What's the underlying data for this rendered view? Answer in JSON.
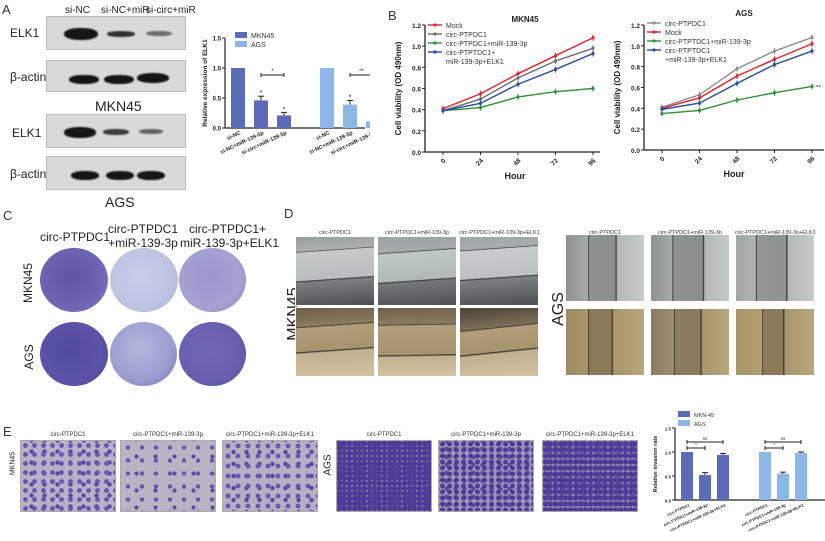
{
  "panels": {
    "A": {
      "letter": "A",
      "lanes": [
        "si-NC",
        "si-NC+miR",
        "si-circ+miR"
      ],
      "blot_rows": [
        "ELK1",
        "β-actin",
        "ELK1",
        "β-actin"
      ],
      "cell_lines": [
        "MKN45",
        "AGS"
      ]
    },
    "B": {
      "letter": "B"
    },
    "C": {
      "letter": "C",
      "columns": [
        "circ-PTPDC1",
        "circ-PTPDC1\n+miR-139-3p",
        "circ-PTPDC1+\nmiR-139-3p+ELK1"
      ],
      "col1": "circ-PTPDC1",
      "col2a": "circ-PTPDC1",
      "col2b": "+miR-139-3p",
      "col3a": "circ-PTPDC1+",
      "col3b": "miR-139-3p+ELK1",
      "rows": [
        "MKN45",
        "AGS"
      ]
    },
    "D": {
      "letter": "D",
      "columns": [
        "circ-PTPDC1",
        "circ-PTPDC1+miR-139-3p",
        "circ-PTPDC1+miR-139-3p+ELK1"
      ],
      "rows": [
        "MKN45",
        "AGS"
      ]
    },
    "E": {
      "letter": "E",
      "columns": [
        "circ-PTPDC1",
        "circ-PTPDC1+miR-139-3p",
        "circ-PTPDC1+miR-139-3p+ELK1"
      ],
      "rows": [
        "MKN45",
        "AGS"
      ]
    }
  },
  "chart_data": [
    {
      "id": "A-bar",
      "type": "bar",
      "title": "",
      "ylabel": "Relative expression of ELK1",
      "xlabel": "",
      "ylim": [
        0,
        1.5
      ],
      "yticks": [
        "0.0",
        "0.5",
        "1.0",
        "1.5"
      ],
      "categories": [
        "si-NC",
        "si-NC+miR-139-3p",
        "si-circ+miR-139-3p"
      ],
      "series": [
        {
          "name": "MKN45",
          "color": "#5b6bb8",
          "values": [
            1.0,
            0.46,
            0.21
          ],
          "errors": [
            0,
            0.07,
            0.05
          ],
          "stars": [
            "",
            "*",
            "*"
          ]
        },
        {
          "name": "AGS",
          "color": "#8cb6e6",
          "values": [
            1.0,
            0.39,
            0.11
          ],
          "errors": [
            0,
            0.07,
            0.03
          ],
          "stars": [
            "",
            "*",
            "**"
          ]
        }
      ],
      "annotations": [
        {
          "series": "MKN45",
          "between": [
            1,
            2
          ],
          "text": "*"
        },
        {
          "series": "AGS",
          "between": [
            1,
            2
          ],
          "text": "**"
        }
      ],
      "legend_position": "top"
    },
    {
      "id": "B-MKN45",
      "type": "line",
      "title": "MKN45",
      "xlabel": "Hour",
      "ylabel": "Cell viability (OD 490nm)",
      "x": [
        "0",
        "24",
        "48",
        "72",
        "96"
      ],
      "ylim": [
        0,
        1.2
      ],
      "yticks": [
        "0.0",
        "0.2",
        "0.4",
        "0.6",
        "0.8",
        "1.0",
        "1.2"
      ],
      "series": [
        {
          "name": "Mock",
          "color": "#e0242b",
          "values": [
            0.41,
            0.55,
            0.74,
            0.91,
            1.08
          ]
        },
        {
          "name": "circ-PTPDC1",
          "color": "#6d6d6d",
          "values": [
            0.39,
            0.5,
            0.7,
            0.86,
            0.98
          ]
        },
        {
          "name": "circ-PTPDC1+miR-139-3p",
          "color": "#2f8f3a",
          "values": [
            0.39,
            0.42,
            0.52,
            0.57,
            0.6
          ]
        },
        {
          "name": "circ-PTPTDC1+\nmiR-139-3p+ELK1",
          "color": "#2a4da0",
          "values": [
            0.39,
            0.46,
            0.64,
            0.78,
            0.93
          ]
        }
      ],
      "legend": [
        "Mock",
        "circ-PTPDC1",
        "circ-PTPDC1+miR-139-3p",
        "circ-PTPTDC1+",
        "miR-139-3p+ELK1"
      ],
      "legend_position": "top-left"
    },
    {
      "id": "B-AGS",
      "type": "line",
      "title": "AGS",
      "xlabel": "Hour",
      "ylabel": "Cell viability (OD 490nm)",
      "x": [
        "0",
        "24",
        "48",
        "72",
        "96"
      ],
      "ylim": [
        0,
        1.2
      ],
      "yticks": [
        "0.0",
        "0.2",
        "0.4",
        "0.6",
        "0.8",
        "1.0",
        "1.2"
      ],
      "series": [
        {
          "name": "circ-PTPDC1",
          "color": "#8c8c8c",
          "values": [
            0.41,
            0.53,
            0.78,
            0.95,
            1.08
          ]
        },
        {
          "name": "Mock",
          "color": "#e0242b",
          "values": [
            0.4,
            0.5,
            0.71,
            0.87,
            1.02
          ]
        },
        {
          "name": "circ-PTPTDC1+miR-139-3p",
          "color": "#2f8f3a",
          "values": [
            0.35,
            0.38,
            0.48,
            0.55,
            0.61
          ]
        },
        {
          "name": "circ-PTPTDC1\n+miR-139-3p+ELK1",
          "color": "#2a4da0",
          "values": [
            0.39,
            0.45,
            0.64,
            0.82,
            0.95
          ]
        }
      ],
      "legend": [
        "circ-PTPDC1",
        "Mock",
        "circ-PTPTDC1+miR-139-3p",
        "circ-PTPTDC1",
        "+miR-139-3p+ELK1"
      ],
      "annotations": [
        {
          "x": "96",
          "text": "**"
        }
      ],
      "legend_position": "top-left"
    },
    {
      "id": "E-bar",
      "type": "bar",
      "title": "",
      "ylabel": "Relative invasion rate",
      "xlabel": "",
      "ylim": [
        0,
        1.5
      ],
      "yticks": [
        "0.0",
        "0.5",
        "1.0",
        "1.5"
      ],
      "categories": [
        "circ-PTPDC1",
        "circ-PTPDC1+miR-139-3p",
        "circ-PTPDC1+miR-139-3p+ELK1"
      ],
      "series": [
        {
          "name": "MKN-45",
          "color": "#5b6bb8",
          "values": [
            1.0,
            0.52,
            0.94
          ],
          "errors": [
            0,
            0.05,
            0.03
          ]
        },
        {
          "name": "AGS",
          "color": "#8cb6e6",
          "values": [
            1.0,
            0.55,
            0.98
          ],
          "errors": [
            0,
            0.03,
            0.02
          ]
        }
      ],
      "annotations": [
        {
          "series": "MKN-45",
          "between": [
            0,
            1
          ],
          "text": "*"
        },
        {
          "series": "MKN-45",
          "between": [
            0,
            2
          ],
          "text": "ns"
        },
        {
          "series": "AGS",
          "between": [
            0,
            1
          ],
          "text": "*"
        },
        {
          "series": "AGS",
          "between": [
            0,
            2
          ],
          "text": "ns"
        }
      ],
      "legend_position": "top"
    }
  ]
}
